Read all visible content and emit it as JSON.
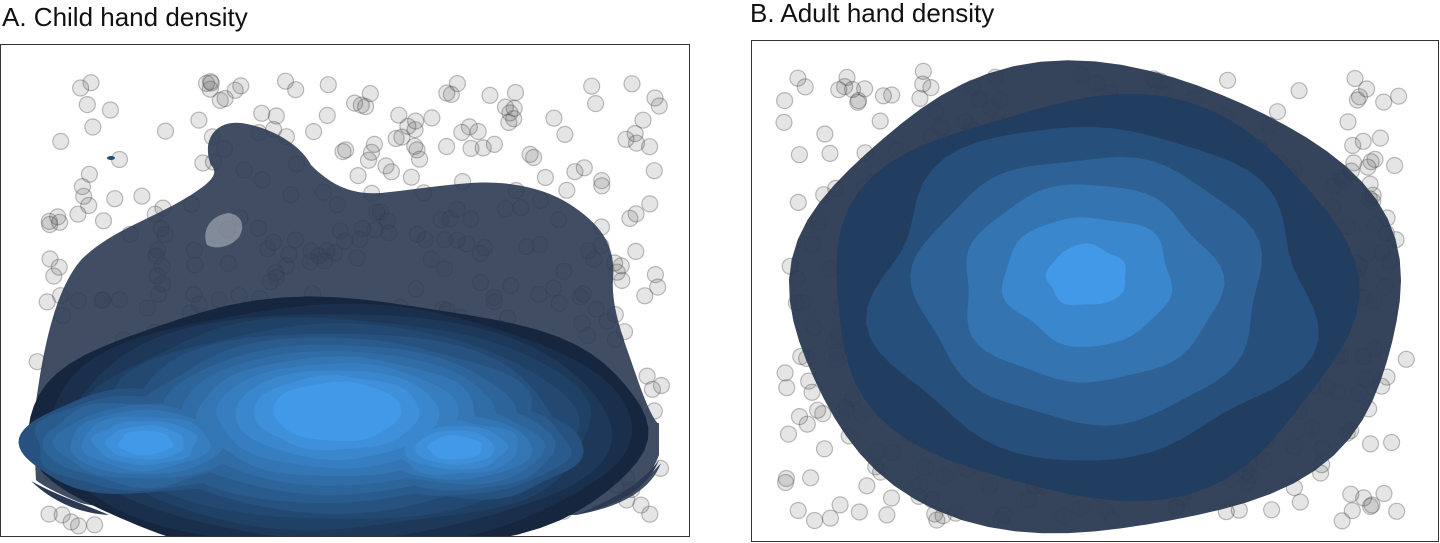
{
  "chart_data": [
    {
      "id": "A",
      "type": "density-contour",
      "title": "A. Child hand density",
      "xlim": [
        0,
        1
      ],
      "ylim": [
        0,
        1
      ],
      "levels": 14,
      "colors": {
        "low": "#16263f",
        "high": "#4199e8",
        "outer": "#2b3a52",
        "points": "#444444"
      },
      "peaks": [
        {
          "x": 0.21,
          "y": 0.19,
          "weight": 1.0
        },
        {
          "x": 0.66,
          "y": 0.18,
          "weight": 1.0
        }
      ],
      "point_count": 420,
      "point_region": {
        "x": [
          0.05,
          0.96
        ],
        "y": [
          0.02,
          0.93
        ]
      }
    },
    {
      "id": "B",
      "type": "density-contour",
      "title": "B. Adult hand density",
      "xlim": [
        0,
        1
      ],
      "ylim": [
        0,
        1
      ],
      "levels": 7,
      "colors": {
        "low": "#1a2a44",
        "high": "#4199e8",
        "outer": "#2b3a52",
        "points": "#444444"
      },
      "peaks": [
        {
          "x": 0.51,
          "y": 0.58,
          "weight": 1.0
        }
      ],
      "point_count": 460,
      "point_region": {
        "x": [
          0.04,
          0.96
        ],
        "y": [
          0.04,
          0.94
        ]
      }
    }
  ]
}
